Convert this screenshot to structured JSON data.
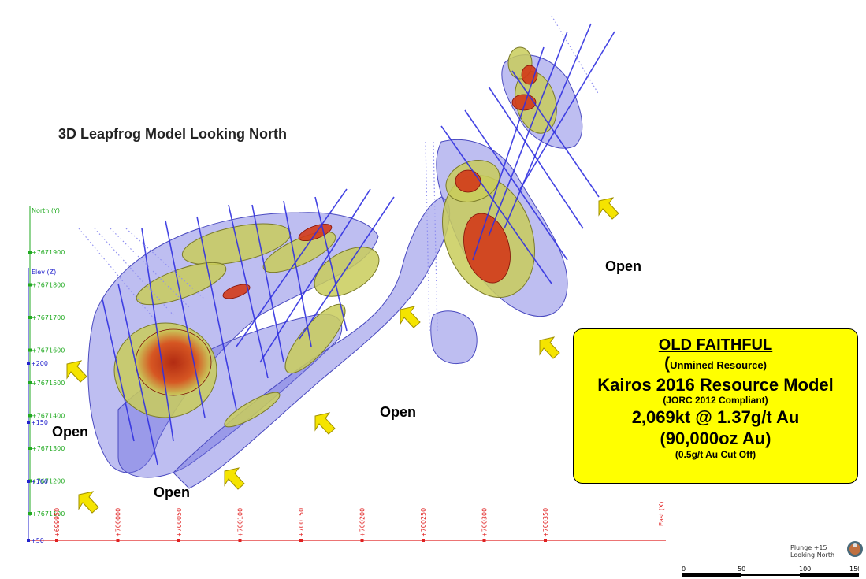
{
  "title": "3D Leapfrog Model Looking North",
  "open_labels": [
    "Open",
    "Open",
    "Open",
    "Open"
  ],
  "axes": {
    "north_label": "North (Y)",
    "elev_label": "Elev (Z)",
    "east_label": "East (X)",
    "north_ticks": [
      "+7671900",
      "+7671800",
      "+7671700",
      "+7671600",
      "+7671500",
      "+7671400",
      "+7671300",
      "+7671200",
      "+7671100"
    ],
    "elev_ticks": [
      "+200",
      "+150",
      "+100",
      "+50"
    ],
    "east_ticks": [
      "+699950",
      "+700000",
      "+700050",
      "+700100",
      "+700150",
      "+700200",
      "+700250",
      "+700300",
      "+700350"
    ]
  },
  "infobox": {
    "heading": "OLD FAITHFUL",
    "open_paren": "(",
    "status": "Unmined Resource)",
    "model": "Kairos 2016 Resource Model",
    "compliance": "(JORC 2012 Compliant)",
    "tonnage": "2,069kt @ 1.37g/t Au",
    "ounces": "(90,000oz Au)",
    "cutoff": "(0.5g/t Au Cut Off)"
  },
  "view": {
    "plunge": "Plunge +15",
    "direction": "Looking North"
  },
  "scale": {
    "ticks": [
      "0",
      "50",
      "100",
      "150"
    ]
  },
  "colors": {
    "shell_blue": "#6f6fe0",
    "ore_yellow": "#c9cc5a",
    "ore_red": "#d23a1a",
    "drill_blue": "#3030e0",
    "arrow_yellow": "#f5e400",
    "north_axis": "#22aa22",
    "elev_axis": "#2222cc",
    "east_axis": "#e02020",
    "infobox_bg": "#ffff00"
  }
}
